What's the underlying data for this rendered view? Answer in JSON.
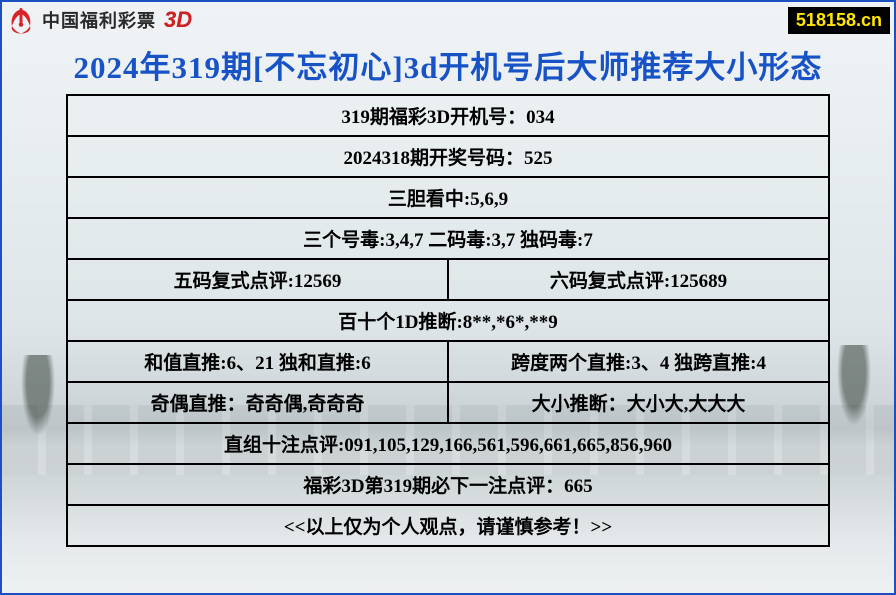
{
  "header": {
    "brand_cn": "中国福利彩票",
    "brand_3d": "3D",
    "site_badge": "518158.cn",
    "logo_color": "#d7242a"
  },
  "title": "2024年319期[不忘初心]3d开机号后大师推荐大小形态",
  "colors": {
    "frame_border": "#1b4fc2",
    "title_color": "#1753c7",
    "table_border": "#000000",
    "text_color": "#000000",
    "badge_bg": "#000000",
    "badge_fg": "#ffe500"
  },
  "rows": [
    {
      "cells": [
        "319期福彩3D开机号：034"
      ]
    },
    {
      "cells": [
        "2024318期开奖号码：525"
      ]
    },
    {
      "cells": [
        "三胆看中:5,6,9"
      ]
    },
    {
      "cells": [
        "三个号毒:3,4,7  二码毒:3,7  独码毒:7"
      ]
    },
    {
      "cells": [
        "五码复式点评:12569",
        "六码复式点评:125689"
      ]
    },
    {
      "cells": [
        "百十个1D推断:8**,*6*,**9"
      ]
    },
    {
      "cells": [
        "和值直推:6、21   独和直推:6",
        "跨度两个直推:3、4 独跨直推:4"
      ]
    },
    {
      "cells": [
        "奇偶直推：奇奇偶,奇奇奇",
        "大小推断：大小大,大大大"
      ]
    },
    {
      "cells": [
        "直组十注点评:091,105,129,166,561,596,661,665,856,960"
      ]
    },
    {
      "cells": [
        "福彩3D第319期必下一注点评：665"
      ]
    },
    {
      "cells": [
        "<<以上仅为个人观点，请谨慎参考！>>"
      ]
    }
  ]
}
